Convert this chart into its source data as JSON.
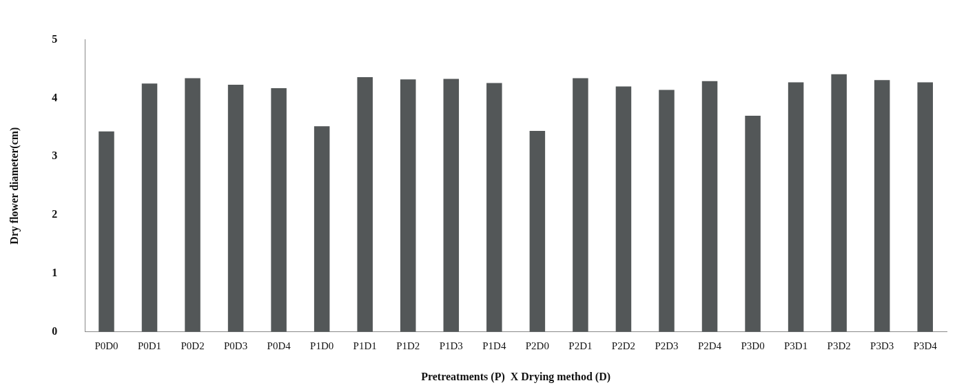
{
  "chart_data": {
    "type": "bar",
    "xlabel": "Pretreatments (P)  X Drying method (D)",
    "ylabel": "Dry flower diameter(cm)",
    "categories": [
      "P0D0",
      "P0D1",
      "P0D2",
      "P0D3",
      "P0D4",
      "P1D0",
      "P1D1",
      "P1D2",
      "P1D3",
      "P1D4",
      "P2D0",
      "P2D1",
      "P2D2",
      "P2D3",
      "P2D4",
      "P3D0",
      "P3D1",
      "P3D2",
      "P3D3",
      "P3D4"
    ],
    "values": [
      3.43,
      4.25,
      4.34,
      4.23,
      4.17,
      3.52,
      4.36,
      4.32,
      4.33,
      4.26,
      3.44,
      4.34,
      4.2,
      4.14,
      4.29,
      3.7,
      4.27,
      4.41,
      4.31,
      4.27
    ],
    "color": "#535758",
    "ylim": [
      0,
      5
    ],
    "yticks": [
      0,
      1,
      2,
      3,
      4,
      5
    ],
    "grid": false,
    "legend": false
  }
}
